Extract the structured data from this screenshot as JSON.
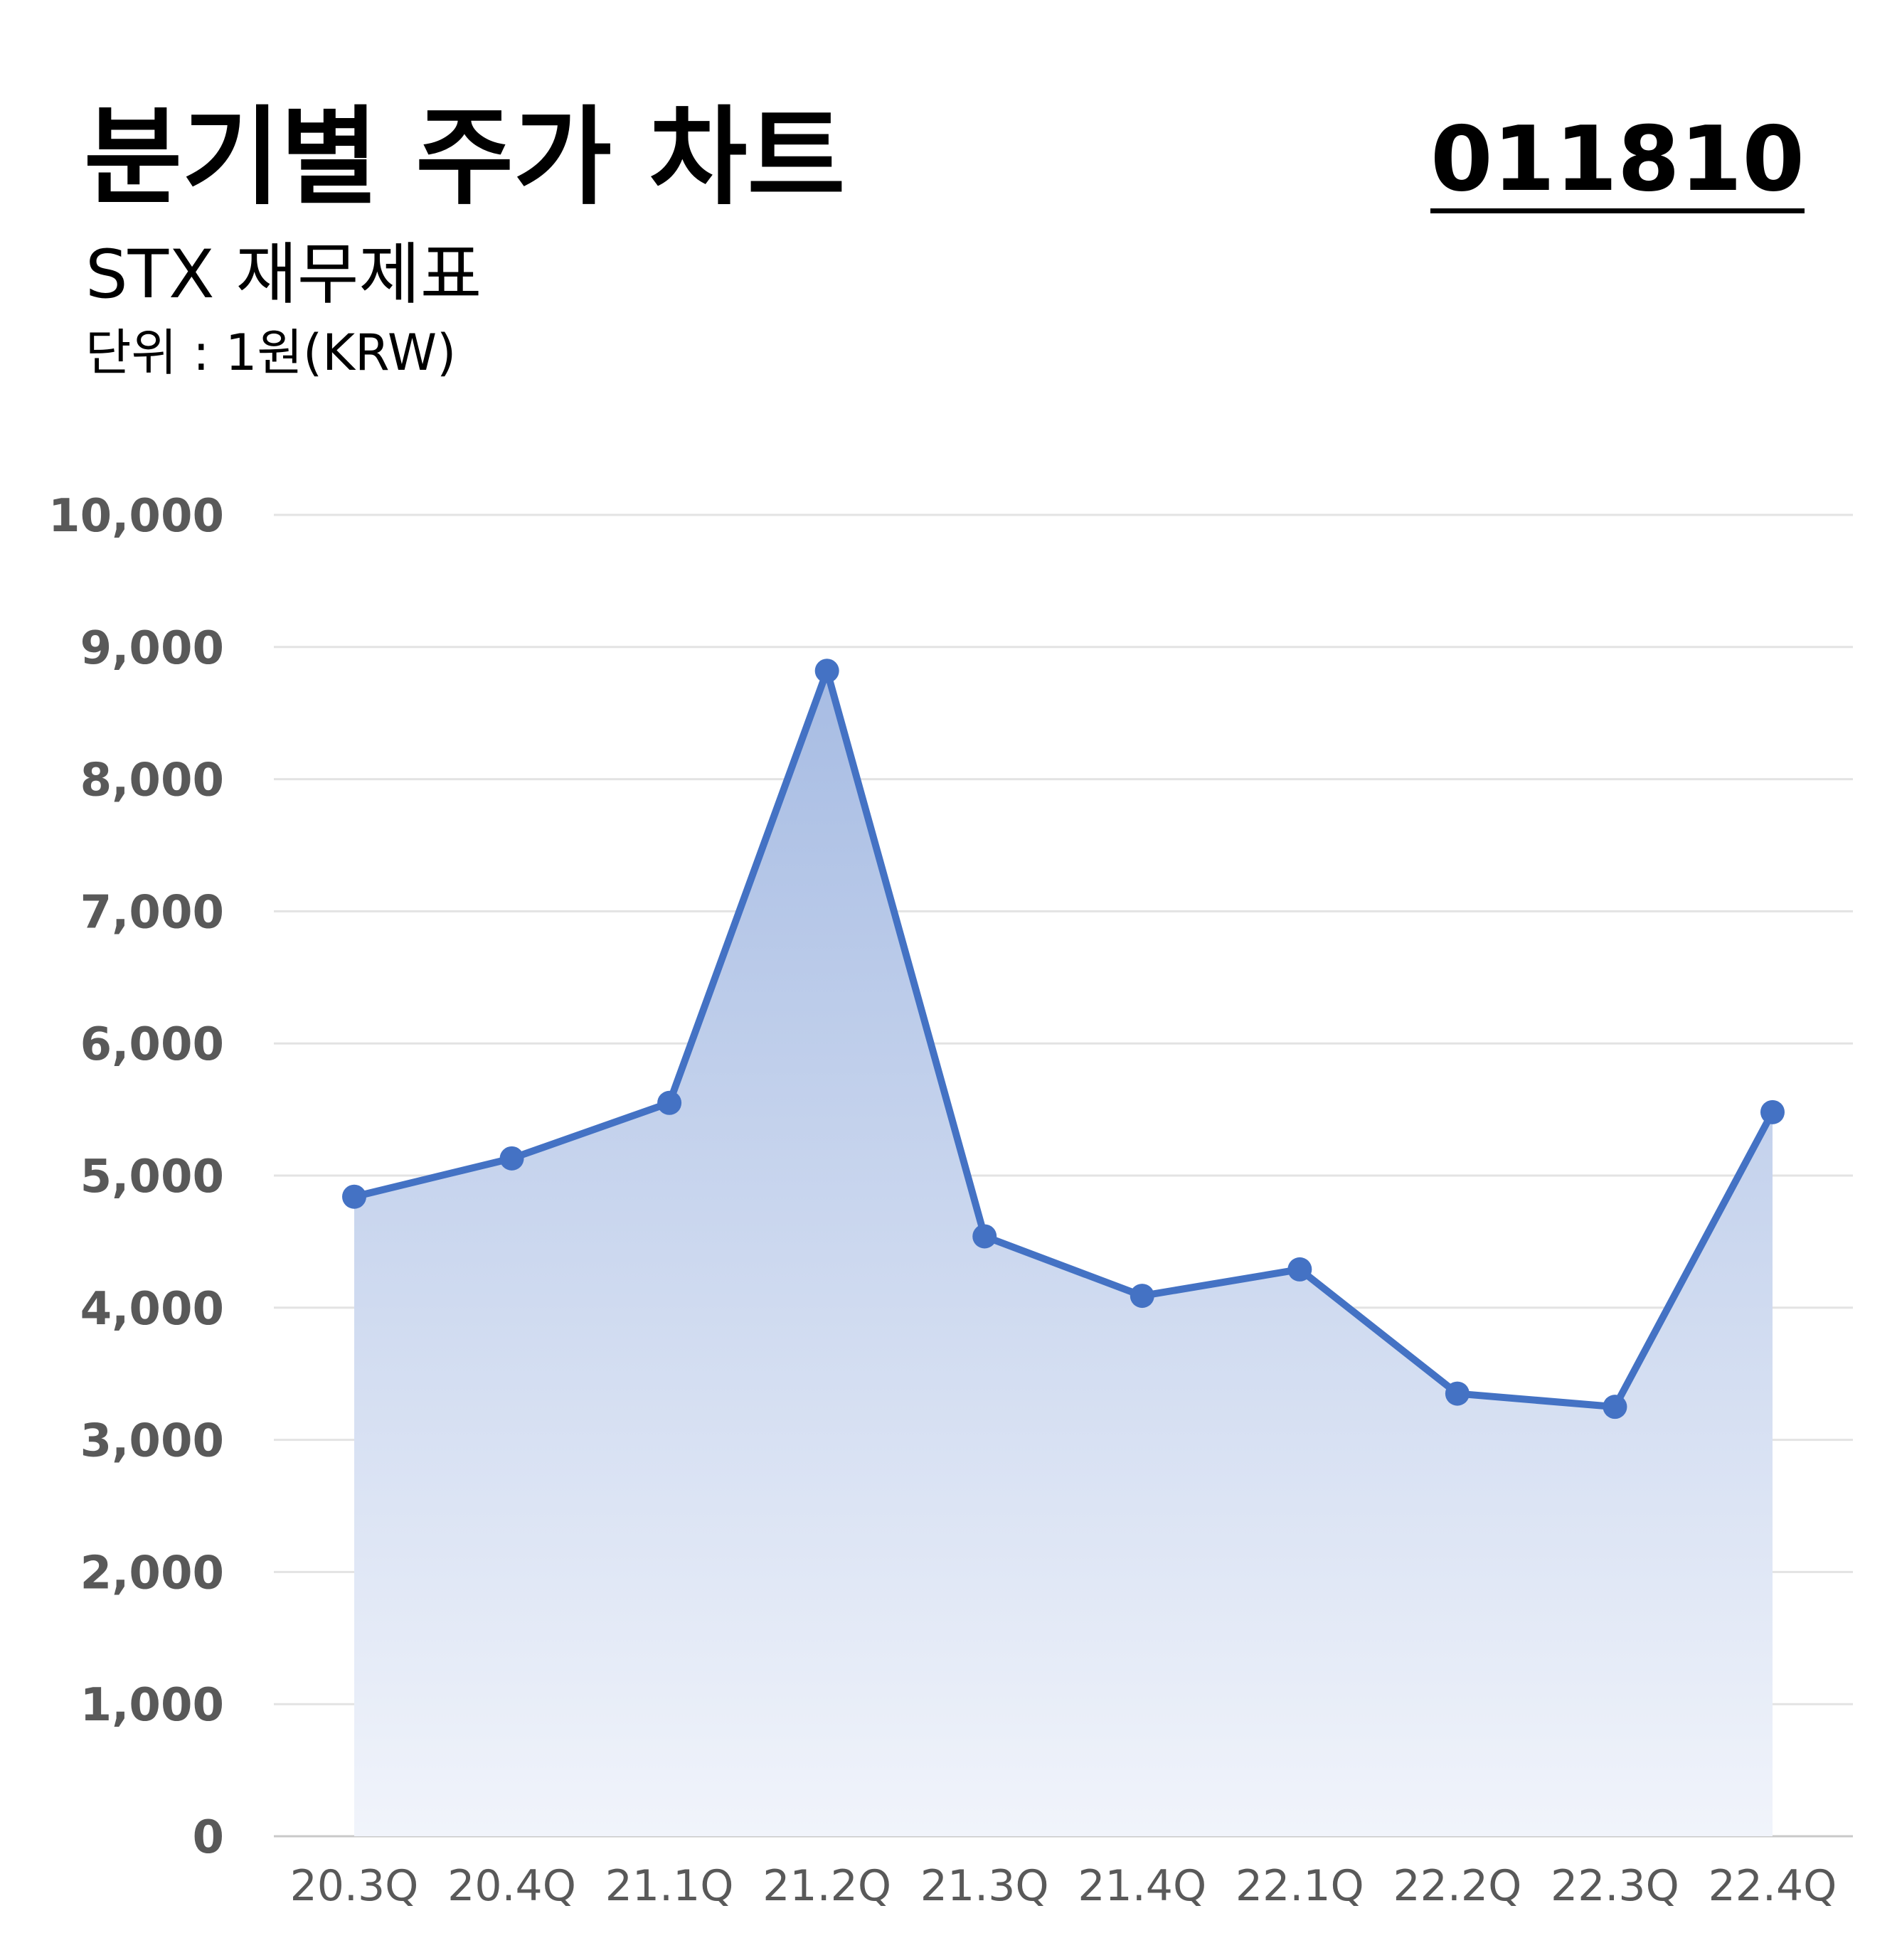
{
  "header": {
    "title": "분기별 주가 차트",
    "subtitle": "STX 재무제표",
    "unit": "단위 : 1원(KRW)",
    "code": "011810"
  },
  "colors": {
    "line": "#4472C4",
    "area_top": "#A7BCE3",
    "area_bottom": "#F1F4FB",
    "grid": "#E3E3E3",
    "tick_text": "#595959"
  },
  "chart_data": {
    "type": "area",
    "title": "분기별 주가 차트",
    "categories": [
      "20.3Q",
      "20.4Q",
      "21.1Q",
      "21.2Q",
      "21.3Q",
      "21.4Q",
      "22.1Q",
      "22.2Q",
      "22.3Q",
      "22.4Q"
    ],
    "series": [
      {
        "values": [
          4840,
          5130,
          5550,
          8820,
          4540,
          4090,
          4290,
          3350,
          3250,
          5480
        ]
      }
    ],
    "ylim": [
      0,
      10000
    ],
    "yticks": [
      0,
      1000,
      2000,
      3000,
      4000,
      5000,
      6000,
      7000,
      8000,
      9000,
      10000
    ],
    "ytick_labels": [
      "0",
      "1,000",
      "2,000",
      "3,000",
      "4,000",
      "5,000",
      "6,000",
      "7,000",
      "8,000",
      "9,000",
      "10,000"
    ],
    "grid": true,
    "legend": "none",
    "markers": true
  }
}
